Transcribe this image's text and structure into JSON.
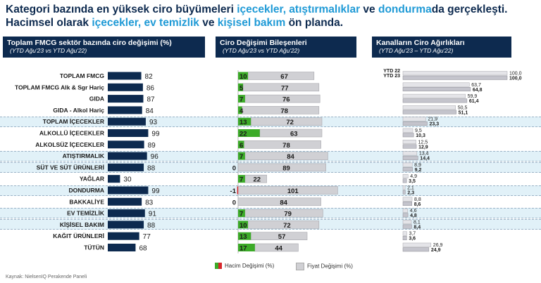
{
  "title": {
    "p1": "Kategori bazında en yüksek ciro büyümeleri ",
    "h1": "içecekler, atıştırmalıklar",
    "p2": " ve ",
    "h2": "dondurma",
    "p3": "da gerçekleşti. Hacimsel olarak ",
    "h3": "içecekler, ev temizlik",
    "p4": " ve ",
    "h4": "kişisel bakım",
    "p5": " ön planda."
  },
  "panels": {
    "p1": {
      "title": "Toplam FMCG sektör bazında ciro değişimi (%)",
      "subtitle": "(YTD Ağu'23 vs YTD Ağu'22)"
    },
    "p2": {
      "title": "Ciro Değişimi Bileşenleri",
      "subtitle": "(YTD Ağu'23 vs YTD Ağu'22)"
    },
    "p3": {
      "title": "Kanalların Ciro Ağırlıkları",
      "subtitle": "(YTD Ağu'23 – YTD Ağu'22)"
    }
  },
  "legend": {
    "volume": "Hacim Değişimi (%)",
    "price": "Fiyat Değişimi (%)"
  },
  "source": "Kaynak: NielsenIQ Perakende Paneli",
  "colors": {
    "navy": "#0d2a4f",
    "accent": "#1f9ad6",
    "green": "#3cab28",
    "red": "#d7262b",
    "gray": "#d0d0d4",
    "band": "#e1f1f8"
  },
  "chart_data": [
    {
      "type": "bar",
      "title": "Toplam FMCG sektör bazında ciro değişimi (%)",
      "categories": [
        "TOPLAM FMCG",
        "TOPLAM FMCG Alk & Sgr Hariç",
        "GIDA",
        "GIDA - Alkol Hariç",
        "TOPLAM İÇECEKLER",
        "ALKOLLÜ İÇECEKLER",
        "ALKOLSÜZ İÇECEKLER",
        "ATIŞTIRMALIK",
        "SÜT VE SÜT ÜRÜNLERİ",
        "YAĞLAR",
        "DONDURMA",
        "BAKKALİYE",
        "EV TEMİZLİK",
        "KİŞİSEL BAKIM",
        "KAĞIT ÜRÜNLERİ",
        "TÜTÜN"
      ],
      "values": [
        82,
        86,
        87,
        84,
        93,
        99,
        89,
        96,
        88,
        30,
        99,
        83,
        91,
        88,
        77,
        68
      ],
      "highlighted": [
        "TOPLAM İÇECEKLER",
        "ATIŞTIRMALIK",
        "SÜT VE SÜT ÜRÜNLERİ",
        "DONDURMA",
        "EV TEMİZLİK",
        "KİŞİSEL BAKIM"
      ]
    },
    {
      "type": "bar",
      "title": "Ciro Değişimi Bileşenleri",
      "categories": [
        "TOPLAM FMCG",
        "TOPLAM FMCG Alk & Sgr Hariç",
        "GIDA",
        "GIDA - Alkol Hariç",
        "TOPLAM İÇECEKLER",
        "ALKOLLÜ İÇECEKLER",
        "ALKOLSÜZ İÇECEKLER",
        "ATIŞTIRMALIK",
        "SÜT VE SÜT ÜRÜNLERİ",
        "YAĞLAR",
        "DONDURMA",
        "BAKKALİYE",
        "EV TEMİZLİK",
        "KİŞİSEL BAKIM",
        "KAĞIT ÜRÜNLERİ",
        "TÜTÜN"
      ],
      "series": [
        {
          "name": "Hacim Değişimi (%)",
          "values": [
            10,
            5,
            7,
            4,
            13,
            22,
            6,
            7,
            0,
            7,
            -1,
            0,
            7,
            10,
            13,
            17
          ]
        },
        {
          "name": "Fiyat Değişimi (%)",
          "values": [
            67,
            77,
            76,
            78,
            72,
            63,
            78,
            84,
            89,
            22,
            101,
            84,
            79,
            72,
            57,
            44
          ]
        }
      ]
    },
    {
      "type": "bar",
      "title": "Kanalların Ciro Ağırlıkları",
      "categories": [
        "TOPLAM FMCG",
        "TOPLAM FMCG Alk & Sgr Hariç",
        "GIDA",
        "GIDA - Alkol Hariç",
        "TOPLAM İÇECEKLER",
        "ALKOLLÜ İÇECEKLER",
        "ALKOLSÜZ İÇECEKLER",
        "ATIŞTIRMALIK",
        "SÜT VE SÜT ÜRÜNLERİ",
        "YAĞLAR",
        "DONDURMA",
        "BAKKALİYE",
        "EV TEMİZLİK",
        "KİŞİSEL BAKIM",
        "KAĞIT ÜRÜNLERİ",
        "TÜTÜN"
      ],
      "series": [
        {
          "name": "YTD 22",
          "values": [
            100.0,
            63.7,
            59.9,
            50.5,
            21.9,
            9.5,
            12.5,
            13.4,
            8.9,
            4.9,
            2.1,
            8.8,
            4.6,
            8.1,
            3.7,
            26.9
          ]
        },
        {
          "name": "YTD 23",
          "values": [
            100.0,
            64.8,
            61.4,
            51.1,
            23.3,
            10.3,
            12.9,
            14.4,
            9.2,
            3.5,
            2.3,
            8.6,
            4.8,
            8.4,
            3.6,
            24.9
          ]
        }
      ]
    }
  ]
}
